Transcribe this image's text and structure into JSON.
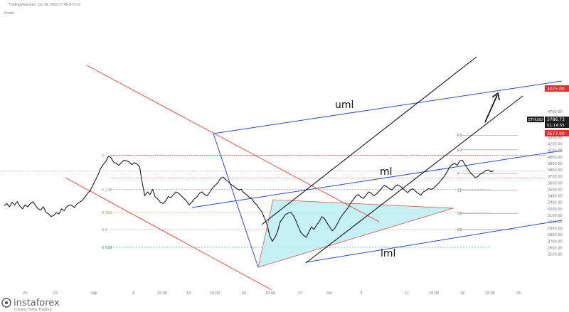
{
  "header": {
    "source": "TradingView.com, Oct 19, 2021 17:45 UTC+3",
    "indicator": "Pivots"
  },
  "colors": {
    "price": "#1a1a1a",
    "uml": "#2b4bd6",
    "channel": "#111111",
    "descending": "#e0463b",
    "triangle_fill": "#bff0f5",
    "fib": "#9a9a9a",
    "fib_green": "#22aa66",
    "red_tag": "#d8322a",
    "black_tag": "#1f1f1f"
  },
  "labels": {
    "uml": "uml",
    "ml": "ml",
    "lml": "lml"
  },
  "price_tags": {
    "target": "4025.00",
    "current": "3786.73",
    "countdown": "01:14:55",
    "symbol": "ETHUSD",
    "support": "3677.00"
  },
  "fib_labels": [
    "0",
    "0.236",
    "0.382",
    "0.5",
    "0.618"
  ],
  "pivot_labels": [
    "R2",
    "R1",
    "P",
    "S1",
    "S2",
    "S3"
  ],
  "watermark": {
    "brand": "instaforex",
    "tagline": "Instant Forex Trading"
  },
  "chart_data": {
    "type": "line",
    "title": "",
    "xlabel": "",
    "ylabel": "",
    "ylim": [
      2450,
      4750
    ],
    "y_ticks": [
      2500,
      2600,
      2700,
      2800,
      2900,
      3000,
      3100,
      3200,
      3300,
      3400,
      3500,
      3600,
      3700,
      3800,
      3900,
      4000,
      4100,
      4200,
      4300,
      4400,
      4500,
      4600,
      4700
    ],
    "x_ticks": [
      "23",
      "27",
      "Sep",
      "6",
      "15:00",
      "13",
      "15:00",
      "20",
      "15:00",
      "27",
      "Oct",
      "5",
      "11",
      "15:00",
      "18",
      "15:00",
      "25"
    ],
    "series": [
      {
        "values": [
          3250,
          3280,
          3230,
          3300,
          3260,
          3310,
          3240,
          3200,
          3260,
          3230,
          3280,
          3310,
          3250,
          3200,
          3180,
          3230,
          3150,
          3120,
          3080,
          3100,
          3140,
          3120,
          3200,
          3170,
          3230,
          3260,
          3250,
          3220,
          3280,
          3300,
          3330,
          3380,
          3440,
          3480,
          3560,
          3640,
          3720,
          3820,
          3880,
          3930,
          4010,
          3990,
          3920,
          3900,
          3870,
          3910,
          3950,
          3940,
          3920,
          3880,
          3910,
          3890,
          3850,
          3600,
          3400,
          3460,
          3420,
          3500,
          3380,
          3350,
          3300,
          3280,
          3320,
          3390,
          3370,
          3420,
          3460,
          3440,
          3400,
          3360,
          3320,
          3260,
          3300,
          3350,
          3380,
          3440,
          3460,
          3420,
          3400,
          3460,
          3520,
          3560,
          3600,
          3660,
          3690,
          3650,
          3620,
          3580,
          3550,
          3520,
          3490,
          3500,
          3450,
          3420,
          3380,
          3360,
          3300,
          3260,
          3200,
          3150,
          3050,
          2950,
          2780,
          2700,
          2760,
          2850,
          3000,
          3050,
          3110,
          3130,
          3150,
          3100,
          3020,
          2920,
          2830,
          2790,
          2760,
          2840,
          2920,
          2880,
          2950,
          3000,
          3080,
          3050,
          2980,
          2920,
          2860,
          2900,
          2970,
          3050,
          3110,
          3160,
          3210,
          3280,
          3340,
          3390,
          3420,
          3380,
          3360,
          3410,
          3460,
          3440,
          3400,
          3430,
          3470,
          3520,
          3560,
          3540,
          3510,
          3490,
          3540,
          3570,
          3550,
          3520,
          3480,
          3450,
          3490,
          3510,
          3470,
          3440,
          3410,
          3460,
          3480,
          3510,
          3500,
          3520,
          3560,
          3600,
          3650,
          3700,
          3760,
          3840,
          3880,
          3900,
          3870,
          3940,
          3950,
          3880,
          3820,
          3760,
          3720,
          3680,
          3700,
          3740,
          3760,
          3790,
          3800,
          3770,
          3786
        ]
      }
    ],
    "annotations": {
      "fibonacci": [
        {
          "label": "0",
          "price": 4025
        },
        {
          "label": "0.236",
          "price": 3500
        },
        {
          "label": "0.382",
          "price": 3140
        },
        {
          "label": "0.5",
          "price": 2880
        },
        {
          "label": "0.618",
          "price": 2605
        }
      ],
      "pivots": [
        {
          "label": "R2",
          "price": 4335
        },
        {
          "label": "R1",
          "price": 4110
        },
        {
          "label": "P",
          "price": 3740
        },
        {
          "label": "S1",
          "price": 3490
        },
        {
          "label": "S2",
          "price": 3130
        },
        {
          "label": "S3",
          "price": 2880
        }
      ],
      "horizontal_levels": [
        {
          "price": 4025,
          "label": "4025.00"
        },
        {
          "price": 3677,
          "label": "3677.00"
        },
        {
          "price": 3786.73,
          "label": "3786.73"
        }
      ]
    }
  }
}
